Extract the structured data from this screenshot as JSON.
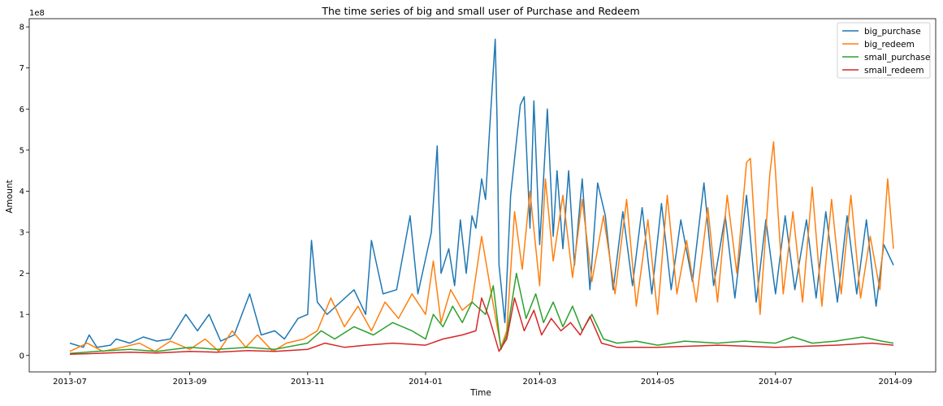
{
  "chart_data": {
    "type": "line",
    "title": "The time series of big and small user of Purchase and Redeem",
    "xlabel": "Time",
    "ylabel": "Amount",
    "y_offset_text": "1e8",
    "x_domain": [
      "2013-07-01",
      "2014-08-31"
    ],
    "ylim": [
      -0.4,
      8.2
    ],
    "y_ticks": [
      0,
      1,
      2,
      3,
      4,
      5,
      6,
      7,
      8
    ],
    "x_ticks": [
      {
        "date": "2013-07-01",
        "label": "2013-07"
      },
      {
        "date": "2013-09-01",
        "label": "2013-09"
      },
      {
        "date": "2013-11-01",
        "label": "2013-11"
      },
      {
        "date": "2014-01-01",
        "label": "2014-01"
      },
      {
        "date": "2014-03-01",
        "label": "2014-03"
      },
      {
        "date": "2014-05-01",
        "label": "2014-05"
      },
      {
        "date": "2014-07-01",
        "label": "2014-07"
      },
      {
        "date": "2014-09-01",
        "label": "2014-09"
      }
    ],
    "legend_position": "top-right",
    "grid": false,
    "series": [
      {
        "name": "big_purchase",
        "color": "#1f77b4",
        "points": [
          [
            "2013-07-01",
            0.3
          ],
          [
            "2013-07-08",
            0.2
          ],
          [
            "2013-07-11",
            0.5
          ],
          [
            "2013-07-15",
            0.2
          ],
          [
            "2013-07-22",
            0.25
          ],
          [
            "2013-07-25",
            0.4
          ],
          [
            "2013-08-01",
            0.3
          ],
          [
            "2013-08-08",
            0.45
          ],
          [
            "2013-08-15",
            0.35
          ],
          [
            "2013-08-22",
            0.4
          ],
          [
            "2013-08-30",
            1.0
          ],
          [
            "2013-09-05",
            0.6
          ],
          [
            "2013-09-11",
            1.0
          ],
          [
            "2013-09-17",
            0.35
          ],
          [
            "2013-09-24",
            0.5
          ],
          [
            "2013-10-02",
            1.5
          ],
          [
            "2013-10-08",
            0.5
          ],
          [
            "2013-10-15",
            0.6
          ],
          [
            "2013-10-20",
            0.4
          ],
          [
            "2013-10-27",
            0.9
          ],
          [
            "2013-11-01",
            1.0
          ],
          [
            "2013-11-03",
            2.8
          ],
          [
            "2013-11-06",
            1.3
          ],
          [
            "2013-11-11",
            1.0
          ],
          [
            "2013-11-18",
            1.3
          ],
          [
            "2013-11-25",
            1.6
          ],
          [
            "2013-12-01",
            1.0
          ],
          [
            "2013-12-04",
            2.8
          ],
          [
            "2013-12-10",
            1.5
          ],
          [
            "2013-12-17",
            1.6
          ],
          [
            "2013-12-24",
            3.4
          ],
          [
            "2013-12-28",
            1.5
          ],
          [
            "2014-01-04",
            3.0
          ],
          [
            "2014-01-07",
            5.1
          ],
          [
            "2014-01-09",
            2.0
          ],
          [
            "2014-01-13",
            2.6
          ],
          [
            "2014-01-16",
            1.7
          ],
          [
            "2014-01-19",
            3.3
          ],
          [
            "2014-01-22",
            2.0
          ],
          [
            "2014-01-25",
            3.4
          ],
          [
            "2014-01-27",
            3.1
          ],
          [
            "2014-01-30",
            4.3
          ],
          [
            "2014-02-01",
            3.8
          ],
          [
            "2014-02-03",
            5.4
          ],
          [
            "2014-02-06",
            7.7
          ],
          [
            "2014-02-07",
            5.7
          ],
          [
            "2014-02-08",
            2.2
          ],
          [
            "2014-02-11",
            0.8
          ],
          [
            "2014-02-14",
            3.9
          ],
          [
            "2014-02-19",
            6.1
          ],
          [
            "2014-02-21",
            6.3
          ],
          [
            "2014-02-24",
            3.1
          ],
          [
            "2014-02-26",
            6.2
          ],
          [
            "2014-03-01",
            2.7
          ],
          [
            "2014-03-03",
            4.3
          ],
          [
            "2014-03-05",
            6.0
          ],
          [
            "2014-03-08",
            2.9
          ],
          [
            "2014-03-10",
            4.5
          ],
          [
            "2014-03-13",
            2.6
          ],
          [
            "2014-03-16",
            4.5
          ],
          [
            "2014-03-19",
            2.2
          ],
          [
            "2014-03-23",
            4.3
          ],
          [
            "2014-03-27",
            1.6
          ],
          [
            "2014-03-31",
            4.2
          ],
          [
            "2014-04-04",
            3.4
          ],
          [
            "2014-04-08",
            1.6
          ],
          [
            "2014-04-13",
            3.5
          ],
          [
            "2014-04-18",
            1.7
          ],
          [
            "2014-04-23",
            3.6
          ],
          [
            "2014-04-28",
            1.5
          ],
          [
            "2014-05-03",
            3.7
          ],
          [
            "2014-05-08",
            1.6
          ],
          [
            "2014-05-13",
            3.3
          ],
          [
            "2014-05-19",
            1.8
          ],
          [
            "2014-05-25",
            4.2
          ],
          [
            "2014-05-30",
            1.7
          ],
          [
            "2014-06-05",
            3.4
          ],
          [
            "2014-06-10",
            1.4
          ],
          [
            "2014-06-16",
            3.9
          ],
          [
            "2014-06-21",
            1.3
          ],
          [
            "2014-06-26",
            3.3
          ],
          [
            "2014-07-01",
            1.5
          ],
          [
            "2014-07-06",
            3.4
          ],
          [
            "2014-07-11",
            1.6
          ],
          [
            "2014-07-17",
            3.3
          ],
          [
            "2014-07-22",
            1.4
          ],
          [
            "2014-07-27",
            3.5
          ],
          [
            "2014-08-02",
            1.3
          ],
          [
            "2014-08-07",
            3.4
          ],
          [
            "2014-08-12",
            1.5
          ],
          [
            "2014-08-17",
            3.3
          ],
          [
            "2014-08-22",
            1.2
          ],
          [
            "2014-08-26",
            2.7
          ],
          [
            "2014-08-31",
            2.2
          ]
        ]
      },
      {
        "name": "big_redeem",
        "color": "#ff7f0e",
        "points": [
          [
            "2013-07-01",
            0.1
          ],
          [
            "2013-07-10",
            0.3
          ],
          [
            "2013-07-18",
            0.1
          ],
          [
            "2013-07-28",
            0.2
          ],
          [
            "2013-08-06",
            0.3
          ],
          [
            "2013-08-14",
            0.1
          ],
          [
            "2013-08-22",
            0.35
          ],
          [
            "2013-09-01",
            0.15
          ],
          [
            "2013-09-09",
            0.4
          ],
          [
            "2013-09-16",
            0.1
          ],
          [
            "2013-09-23",
            0.6
          ],
          [
            "2013-09-30",
            0.2
          ],
          [
            "2013-10-06",
            0.5
          ],
          [
            "2013-10-14",
            0.1
          ],
          [
            "2013-10-21",
            0.3
          ],
          [
            "2013-10-30",
            0.4
          ],
          [
            "2013-11-06",
            0.6
          ],
          [
            "2013-11-13",
            1.4
          ],
          [
            "2013-11-20",
            0.7
          ],
          [
            "2013-11-27",
            1.2
          ],
          [
            "2013-12-04",
            0.6
          ],
          [
            "2013-12-11",
            1.3
          ],
          [
            "2013-12-18",
            0.9
          ],
          [
            "2013-12-25",
            1.5
          ],
          [
            "2014-01-01",
            1.0
          ],
          [
            "2014-01-05",
            2.3
          ],
          [
            "2014-01-09",
            0.8
          ],
          [
            "2014-01-14",
            1.6
          ],
          [
            "2014-01-20",
            1.1
          ],
          [
            "2014-01-25",
            1.3
          ],
          [
            "2014-01-30",
            2.9
          ],
          [
            "2014-02-04",
            1.5
          ],
          [
            "2014-02-09",
            0.2
          ],
          [
            "2014-02-12",
            0.6
          ],
          [
            "2014-02-16",
            3.5
          ],
          [
            "2014-02-20",
            2.1
          ],
          [
            "2014-02-24",
            4.0
          ],
          [
            "2014-03-01",
            1.7
          ],
          [
            "2014-03-04",
            4.3
          ],
          [
            "2014-03-08",
            2.3
          ],
          [
            "2014-03-13",
            3.9
          ],
          [
            "2014-03-18",
            1.9
          ],
          [
            "2014-03-23",
            3.8
          ],
          [
            "2014-03-28",
            1.8
          ],
          [
            "2014-04-03",
            3.4
          ],
          [
            "2014-04-09",
            1.5
          ],
          [
            "2014-04-15",
            3.8
          ],
          [
            "2014-04-20",
            1.2
          ],
          [
            "2014-04-26",
            3.3
          ],
          [
            "2014-05-01",
            1.0
          ],
          [
            "2014-05-06",
            3.9
          ],
          [
            "2014-05-11",
            1.5
          ],
          [
            "2014-05-16",
            2.8
          ],
          [
            "2014-05-21",
            1.3
          ],
          [
            "2014-05-27",
            3.6
          ],
          [
            "2014-06-01",
            1.3
          ],
          [
            "2014-06-06",
            3.9
          ],
          [
            "2014-06-11",
            2.0
          ],
          [
            "2014-06-16",
            4.7
          ],
          [
            "2014-06-18",
            4.8
          ],
          [
            "2014-06-23",
            1.0
          ],
          [
            "2014-06-28",
            4.4
          ],
          [
            "2014-06-30",
            5.2
          ],
          [
            "2014-07-05",
            1.5
          ],
          [
            "2014-07-10",
            3.5
          ],
          [
            "2014-07-15",
            1.3
          ],
          [
            "2014-07-20",
            4.1
          ],
          [
            "2014-07-25",
            1.2
          ],
          [
            "2014-07-30",
            3.8
          ],
          [
            "2014-08-04",
            1.5
          ],
          [
            "2014-08-09",
            3.9
          ],
          [
            "2014-08-14",
            1.4
          ],
          [
            "2014-08-19",
            2.9
          ],
          [
            "2014-08-24",
            1.6
          ],
          [
            "2014-08-28",
            4.3
          ],
          [
            "2014-08-31",
            2.6
          ]
        ]
      },
      {
        "name": "small_purchase",
        "color": "#2ca02c",
        "points": [
          [
            "2013-07-01",
            0.05
          ],
          [
            "2013-07-15",
            0.1
          ],
          [
            "2013-08-01",
            0.15
          ],
          [
            "2013-08-15",
            0.1
          ],
          [
            "2013-09-01",
            0.2
          ],
          [
            "2013-09-15",
            0.15
          ],
          [
            "2013-10-01",
            0.2
          ],
          [
            "2013-10-15",
            0.15
          ],
          [
            "2013-11-01",
            0.3
          ],
          [
            "2013-11-08",
            0.6
          ],
          [
            "2013-11-15",
            0.4
          ],
          [
            "2013-11-25",
            0.7
          ],
          [
            "2013-12-05",
            0.5
          ],
          [
            "2013-12-15",
            0.8
          ],
          [
            "2013-12-25",
            0.6
          ],
          [
            "2014-01-01",
            0.4
          ],
          [
            "2014-01-05",
            1.0
          ],
          [
            "2014-01-10",
            0.7
          ],
          [
            "2014-01-15",
            1.2
          ],
          [
            "2014-01-20",
            0.8
          ],
          [
            "2014-01-25",
            1.3
          ],
          [
            "2014-02-01",
            1.0
          ],
          [
            "2014-02-05",
            1.7
          ],
          [
            "2014-02-09",
            0.15
          ],
          [
            "2014-02-12",
            0.5
          ],
          [
            "2014-02-17",
            2.0
          ],
          [
            "2014-02-22",
            0.9
          ],
          [
            "2014-02-27",
            1.5
          ],
          [
            "2014-03-03",
            0.8
          ],
          [
            "2014-03-08",
            1.3
          ],
          [
            "2014-03-13",
            0.7
          ],
          [
            "2014-03-18",
            1.2
          ],
          [
            "2014-03-23",
            0.6
          ],
          [
            "2014-03-28",
            1.0
          ],
          [
            "2014-04-03",
            0.4
          ],
          [
            "2014-04-10",
            0.3
          ],
          [
            "2014-04-20",
            0.35
          ],
          [
            "2014-05-01",
            0.25
          ],
          [
            "2014-05-15",
            0.35
          ],
          [
            "2014-06-01",
            0.3
          ],
          [
            "2014-06-15",
            0.35
          ],
          [
            "2014-07-01",
            0.3
          ],
          [
            "2014-07-10",
            0.45
          ],
          [
            "2014-07-20",
            0.3
          ],
          [
            "2014-08-01",
            0.35
          ],
          [
            "2014-08-15",
            0.45
          ],
          [
            "2014-08-25",
            0.35
          ],
          [
            "2014-08-31",
            0.3
          ]
        ]
      },
      {
        "name": "small_redeem",
        "color": "#d62728",
        "points": [
          [
            "2013-07-01",
            0.03
          ],
          [
            "2013-07-15",
            0.05
          ],
          [
            "2013-08-01",
            0.08
          ],
          [
            "2013-08-15",
            0.06
          ],
          [
            "2013-09-01",
            0.1
          ],
          [
            "2013-09-15",
            0.08
          ],
          [
            "2013-10-01",
            0.12
          ],
          [
            "2013-10-15",
            0.1
          ],
          [
            "2013-11-01",
            0.15
          ],
          [
            "2013-11-10",
            0.3
          ],
          [
            "2013-11-20",
            0.2
          ],
          [
            "2013-12-01",
            0.25
          ],
          [
            "2013-12-15",
            0.3
          ],
          [
            "2014-01-01",
            0.25
          ],
          [
            "2014-01-10",
            0.4
          ],
          [
            "2014-01-20",
            0.5
          ],
          [
            "2014-01-27",
            0.6
          ],
          [
            "2014-01-30",
            1.4
          ],
          [
            "2014-02-03",
            0.9
          ],
          [
            "2014-02-08",
            0.1
          ],
          [
            "2014-02-12",
            0.4
          ],
          [
            "2014-02-16",
            1.4
          ],
          [
            "2014-02-21",
            0.6
          ],
          [
            "2014-02-26",
            1.1
          ],
          [
            "2014-03-02",
            0.5
          ],
          [
            "2014-03-07",
            0.9
          ],
          [
            "2014-03-12",
            0.6
          ],
          [
            "2014-03-17",
            0.8
          ],
          [
            "2014-03-22",
            0.5
          ],
          [
            "2014-03-27",
            0.95
          ],
          [
            "2014-04-02",
            0.3
          ],
          [
            "2014-04-10",
            0.2
          ],
          [
            "2014-05-01",
            0.2
          ],
          [
            "2014-06-01",
            0.25
          ],
          [
            "2014-07-01",
            0.2
          ],
          [
            "2014-08-01",
            0.25
          ],
          [
            "2014-08-20",
            0.3
          ],
          [
            "2014-08-31",
            0.25
          ]
        ]
      }
    ]
  }
}
